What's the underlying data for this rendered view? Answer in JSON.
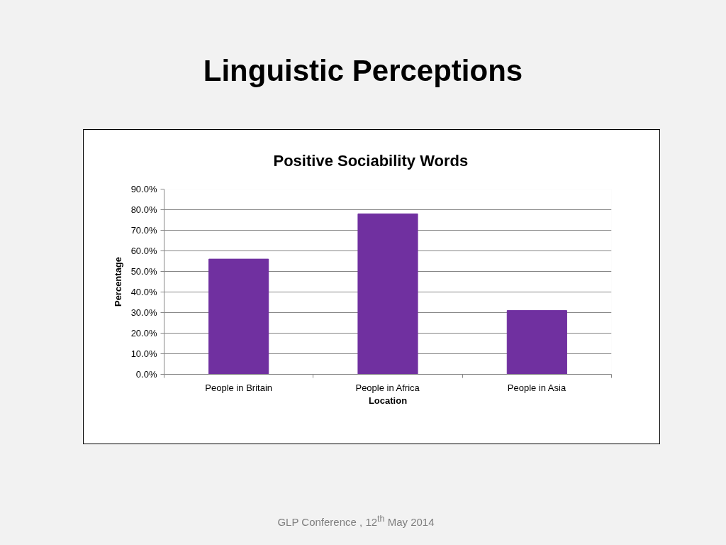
{
  "chart_data": {
    "type": "bar",
    "title": "Linguistic Perceptions",
    "subtitle": "Positive Sociability Words",
    "xlabel": "Location",
    "ylabel": "Percentage",
    "categories": [
      "People in Britain",
      "People in Africa",
      "People in Asia"
    ],
    "values": [
      56,
      78,
      31
    ],
    "color": "#7030a0",
    "ylim": [
      0,
      90
    ],
    "yticks": [
      {
        "value": 0,
        "label": "0.0%"
      },
      {
        "value": 10,
        "label": "10.0%"
      },
      {
        "value": 20,
        "label": "20.0%"
      },
      {
        "value": 30,
        "label": "30.0%"
      },
      {
        "value": 40,
        "label": "40.0%"
      },
      {
        "value": 50,
        "label": "50.0%"
      },
      {
        "value": 60,
        "label": "60.0%"
      },
      {
        "value": 70,
        "label": "70.0%"
      },
      {
        "value": 80,
        "label": "80.0%"
      },
      {
        "value": 90,
        "label": "90.0%"
      }
    ],
    "grid": "y",
    "annotations": [
      "GLP Conference , 12$^{th}$ May 2014"
    ]
  }
}
